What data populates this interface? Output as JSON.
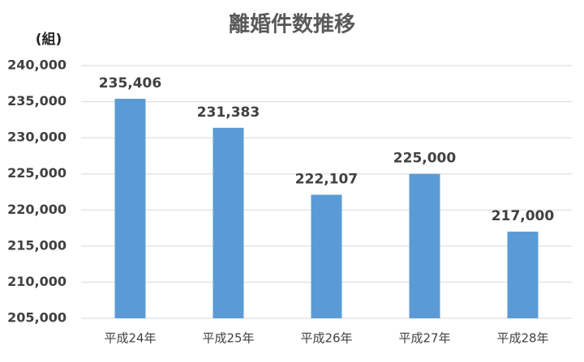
{
  "chart_data": {
    "type": "bar",
    "title": "離婚件数推移",
    "y_label": "(組)",
    "categories": [
      "平成24年",
      "平成25年",
      "平成26年",
      "平成27年",
      "平成28年"
    ],
    "values": [
      235406,
      231383,
      222107,
      225000,
      217000
    ],
    "value_labels": [
      "235,406",
      "231,383",
      "222,107",
      "225,000",
      "217,000"
    ],
    "color": "#5b9bd5",
    "ylim": [
      205000,
      240000
    ],
    "yticks": [
      {
        "value": 205000,
        "label": "205,000"
      },
      {
        "value": 210000,
        "label": "210,000"
      },
      {
        "value": 215000,
        "label": "215,000"
      },
      {
        "value": 220000,
        "label": "220,000"
      },
      {
        "value": 225000,
        "label": "225,000"
      },
      {
        "value": 230000,
        "label": "230,000"
      },
      {
        "value": 235000,
        "label": "235,000"
      },
      {
        "value": 240000,
        "label": "240,000"
      }
    ],
    "grid": true
  }
}
